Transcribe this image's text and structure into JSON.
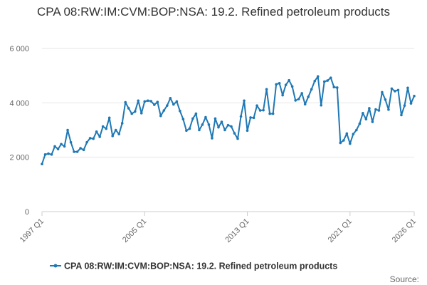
{
  "chart_data": {
    "type": "line",
    "title": "CPA 08:RW:IM:CVM:BOP:NSA: 19.2. Refined petroleum products",
    "xlabel": "",
    "ylabel": "",
    "x_start": "1997 Q1",
    "x_end": "2026 Q1",
    "x_tick_labels": [
      "1997 Q1",
      "2005 Q1",
      "2013 Q1",
      "2021 Q1",
      "2026 Q1"
    ],
    "ylim": [
      0,
      6000
    ],
    "y_ticks": [
      0,
      2000,
      4000,
      6000
    ],
    "y_tick_labels": [
      "0",
      "2 000",
      "4 000",
      "6 000"
    ],
    "grid": true,
    "legend_position": "bottom",
    "series": [
      {
        "name": "CPA 08:RW:IM:CVM:BOP:NSA: 19.2. Refined petroleum products",
        "color": "#1f78b4",
        "values": [
          1750,
          2100,
          2130,
          2100,
          2400,
          2300,
          2480,
          2400,
          3000,
          2550,
          2200,
          2200,
          2330,
          2270,
          2550,
          2700,
          2680,
          2940,
          2750,
          3130,
          3050,
          3450,
          2780,
          3000,
          2850,
          3250,
          4020,
          3800,
          3600,
          3680,
          4080,
          3620,
          4050,
          4080,
          4060,
          3930,
          4030,
          3520,
          3720,
          3900,
          4170,
          3940,
          4050,
          3700,
          3400,
          2980,
          3050,
          3420,
          3600,
          3000,
          3200,
          3470,
          3200,
          2700,
          3420,
          3100,
          3300,
          3000,
          3180,
          3130,
          2880,
          2680,
          3500,
          4080,
          2980,
          3460,
          3450,
          3900,
          3720,
          3730,
          4500,
          3600,
          3600,
          4680,
          4720,
          4280,
          4660,
          4830,
          4600,
          4090,
          4140,
          4350,
          3950,
          4220,
          4500,
          4800,
          4970,
          3910,
          4780,
          4820,
          4920,
          4580,
          4560,
          2530,
          2620,
          2870,
          2500,
          2850,
          3000,
          3230,
          3620,
          3400,
          3800,
          3300,
          3760,
          3720,
          4390,
          4120,
          3750,
          4520,
          4430,
          4470,
          3550,
          3900,
          4550,
          3980,
          4250
        ]
      }
    ]
  },
  "legend": {
    "label": "CPA 08:RW:IM:CVM:BOP:NSA: 19.2. Refined petroleum products"
  },
  "footer": {
    "source_label": "Source:"
  }
}
